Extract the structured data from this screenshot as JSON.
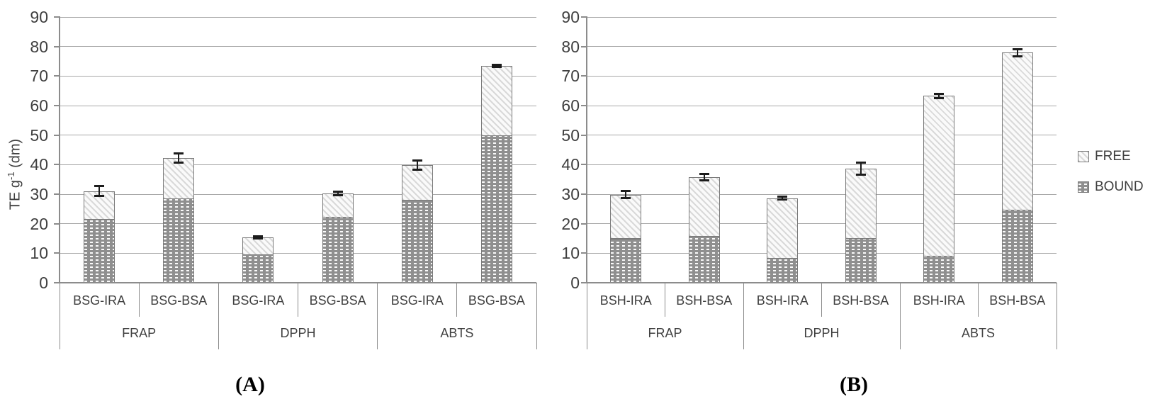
{
  "figure": {
    "captions": {
      "a": "(A)",
      "b": "(B)"
    }
  },
  "legend": {
    "items": [
      {
        "label": "FREE",
        "pattern": "free"
      },
      {
        "label": "BOUND",
        "pattern": "bound"
      }
    ]
  },
  "colors": {
    "gridline": "#a8a8a8",
    "axis": "#8c8c8c",
    "text": "#3f3f3f",
    "bar_border": "#7a7a7a",
    "bound_fill": "#8f8f8f",
    "free_fill": "#fafafa",
    "error_bar": "#1c1c1c"
  },
  "chart_data": [
    {
      "type": "bar",
      "stacked": true,
      "panel": "A",
      "title": "",
      "ylabel": "TE g⁻¹ (dm)",
      "ylabel_parts": {
        "pre": "TE g",
        "sup": "-1",
        "post": " (dm)"
      },
      "ylim": [
        0,
        90
      ],
      "ytick_step": 10,
      "grid": true,
      "legend_position": "right-of-figure",
      "groups": [
        {
          "label": "FRAP",
          "categories": [
            "BSG-IRA",
            "BSG-BSA"
          ]
        },
        {
          "label": "DPPH",
          "categories": [
            "BSG-IRA",
            "BSG-BSA"
          ]
        },
        {
          "label": "ABTS",
          "categories": [
            "BSG-IRA",
            "BSG-BSA"
          ]
        }
      ],
      "series": [
        {
          "name": "BOUND",
          "values": [
            21.5,
            28.5,
            9.6,
            22.3,
            28.0,
            50.0
          ]
        },
        {
          "name": "FREE",
          "values": [
            9.5,
            13.7,
            5.8,
            8.0,
            11.8,
            23.5
          ]
        }
      ],
      "totals": [
        31.0,
        42.2,
        15.4,
        30.3,
        39.8,
        73.5
      ],
      "error_bars": [
        1.7,
        1.6,
        0.3,
        0.6,
        1.5,
        0.3
      ]
    },
    {
      "type": "bar",
      "stacked": true,
      "panel": "B",
      "title": "",
      "ylabel": "",
      "ylim": [
        0,
        90
      ],
      "ytick_step": 10,
      "grid": true,
      "legend_position": "right-of-figure",
      "groups": [
        {
          "label": "FRAP",
          "categories": [
            "BSH-IRA",
            "BSH-BSA"
          ]
        },
        {
          "label": "DPPH",
          "categories": [
            "BSH-IRA",
            "BSH-BSA"
          ]
        },
        {
          "label": "ABTS",
          "categories": [
            "BSH-IRA",
            "BSH-BSA"
          ]
        }
      ],
      "series": [
        {
          "name": "BOUND",
          "values": [
            15.0,
            15.8,
            8.4,
            15.2,
            9.2,
            24.7
          ]
        },
        {
          "name": "FREE",
          "values": [
            14.8,
            20.0,
            20.2,
            23.5,
            54.1,
            53.2
          ]
        }
      ],
      "totals": [
        29.8,
        35.8,
        28.6,
        38.7,
        63.3,
        77.9
      ],
      "error_bars": [
        1.2,
        1.0,
        0.5,
        2.1,
        0.7,
        1.2
      ]
    }
  ]
}
